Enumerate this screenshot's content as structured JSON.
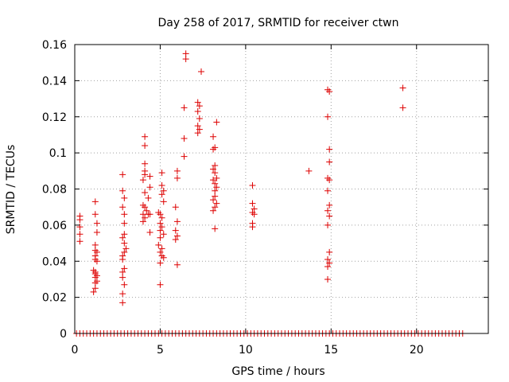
{
  "chart_data": {
    "type": "scatter",
    "title": "Day 258 of 2017, SRMTID for receiver ctwn",
    "xlabel": "GPS time / hours",
    "ylabel": "SRMTID / TECUs",
    "xlim": [
      0,
      24.2
    ],
    "ylim": [
      0,
      0.16
    ],
    "xticks": [
      0,
      5,
      10,
      15,
      20
    ],
    "xtick_labels": [
      "0",
      "5",
      "10",
      "15",
      "20"
    ],
    "yticks": [
      0,
      0.02,
      0.04,
      0.06,
      0.08,
      0.1,
      0.12,
      0.14,
      0.16
    ],
    "ytick_labels": [
      "0",
      "0.02",
      "0.04",
      "0.06",
      "0.08",
      "0.1",
      "0.12",
      "0.14",
      "0.16"
    ],
    "grid": true,
    "marker": "+",
    "color": "#dd0000",
    "series": [
      {
        "name": "SRMTID",
        "points": [
          [
            0.3,
            0.065
          ],
          [
            0.3,
            0.063
          ],
          [
            0.3,
            0.059
          ],
          [
            0.3,
            0.055
          ],
          [
            0.3,
            0.051
          ],
          [
            1.2,
            0.073
          ],
          [
            1.2,
            0.066
          ],
          [
            1.3,
            0.061
          ],
          [
            1.3,
            0.056
          ],
          [
            1.2,
            0.049
          ],
          [
            1.2,
            0.046
          ],
          [
            1.3,
            0.045
          ],
          [
            1.2,
            0.043
          ],
          [
            1.2,
            0.041
          ],
          [
            1.3,
            0.04
          ],
          [
            1.1,
            0.035
          ],
          [
            1.2,
            0.034
          ],
          [
            1.2,
            0.033
          ],
          [
            1.3,
            0.032
          ],
          [
            1.2,
            0.031
          ],
          [
            1.3,
            0.029
          ],
          [
            1.2,
            0.028
          ],
          [
            1.2,
            0.025
          ],
          [
            1.1,
            0.023
          ],
          [
            2.8,
            0.088
          ],
          [
            2.8,
            0.079
          ],
          [
            2.9,
            0.075
          ],
          [
            2.8,
            0.07
          ],
          [
            2.9,
            0.066
          ],
          [
            2.9,
            0.061
          ],
          [
            2.9,
            0.055
          ],
          [
            2.8,
            0.053
          ],
          [
            2.9,
            0.05
          ],
          [
            3.0,
            0.047
          ],
          [
            2.9,
            0.045
          ],
          [
            2.8,
            0.043
          ],
          [
            2.8,
            0.041
          ],
          [
            2.9,
            0.036
          ],
          [
            2.8,
            0.034
          ],
          [
            2.8,
            0.031
          ],
          [
            2.9,
            0.027
          ],
          [
            2.8,
            0.022
          ],
          [
            2.8,
            0.017
          ],
          [
            4.1,
            0.109
          ],
          [
            4.1,
            0.104
          ],
          [
            4.1,
            0.094
          ],
          [
            4.1,
            0.09
          ],
          [
            4.1,
            0.088
          ],
          [
            4.0,
            0.085
          ],
          [
            4.4,
            0.087
          ],
          [
            4.4,
            0.081
          ],
          [
            4.1,
            0.078
          ],
          [
            4.3,
            0.075
          ],
          [
            4.0,
            0.071
          ],
          [
            4.1,
            0.07
          ],
          [
            4.2,
            0.068
          ],
          [
            4.4,
            0.066
          ],
          [
            4.3,
            0.066
          ],
          [
            4.0,
            0.066
          ],
          [
            4.1,
            0.064
          ],
          [
            4.0,
            0.062
          ],
          [
            4.4,
            0.056
          ],
          [
            5.1,
            0.089
          ],
          [
            5.1,
            0.082
          ],
          [
            5.2,
            0.079
          ],
          [
            5.1,
            0.077
          ],
          [
            5.2,
            0.073
          ],
          [
            4.9,
            0.067
          ],
          [
            5.0,
            0.066
          ],
          [
            5.1,
            0.064
          ],
          [
            5.0,
            0.061
          ],
          [
            5.1,
            0.059
          ],
          [
            5.0,
            0.057
          ],
          [
            5.2,
            0.055
          ],
          [
            5.0,
            0.053
          ],
          [
            4.9,
            0.049
          ],
          [
            5.1,
            0.047
          ],
          [
            5.0,
            0.045
          ],
          [
            5.1,
            0.043
          ],
          [
            5.2,
            0.042
          ],
          [
            5.0,
            0.039
          ],
          [
            5.0,
            0.027
          ],
          [
            6.0,
            0.09
          ],
          [
            6.0,
            0.086
          ],
          [
            5.9,
            0.07
          ],
          [
            6.0,
            0.062
          ],
          [
            5.9,
            0.057
          ],
          [
            6.0,
            0.054
          ],
          [
            5.9,
            0.052
          ],
          [
            6.0,
            0.038
          ],
          [
            6.5,
            0.155
          ],
          [
            6.5,
            0.152
          ],
          [
            7.4,
            0.145
          ],
          [
            6.4,
            0.125
          ],
          [
            7.2,
            0.128
          ],
          [
            7.3,
            0.126
          ],
          [
            7.2,
            0.123
          ],
          [
            7.3,
            0.119
          ],
          [
            7.2,
            0.115
          ],
          [
            7.3,
            0.113
          ],
          [
            7.2,
            0.111
          ],
          [
            6.4,
            0.108
          ],
          [
            6.4,
            0.098
          ],
          [
            8.3,
            0.117
          ],
          [
            8.1,
            0.109
          ],
          [
            8.2,
            0.103
          ],
          [
            8.1,
            0.102
          ],
          [
            8.2,
            0.093
          ],
          [
            8.1,
            0.091
          ],
          [
            8.2,
            0.089
          ],
          [
            8.3,
            0.086
          ],
          [
            8.1,
            0.085
          ],
          [
            8.2,
            0.083
          ],
          [
            8.3,
            0.081
          ],
          [
            8.2,
            0.079
          ],
          [
            8.2,
            0.076
          ],
          [
            8.1,
            0.074
          ],
          [
            8.3,
            0.072
          ],
          [
            8.2,
            0.07
          ],
          [
            8.1,
            0.068
          ],
          [
            8.2,
            0.058
          ],
          [
            10.4,
            0.082
          ],
          [
            10.4,
            0.072
          ],
          [
            10.5,
            0.069
          ],
          [
            10.4,
            0.067
          ],
          [
            10.5,
            0.066
          ],
          [
            10.4,
            0.061
          ],
          [
            10.4,
            0.059
          ],
          [
            13.7,
            0.09
          ],
          [
            14.8,
            0.135
          ],
          [
            14.9,
            0.134
          ],
          [
            14.8,
            0.12
          ],
          [
            14.9,
            0.102
          ],
          [
            14.9,
            0.095
          ],
          [
            14.8,
            0.086
          ],
          [
            14.9,
            0.085
          ],
          [
            14.8,
            0.079
          ],
          [
            14.9,
            0.071
          ],
          [
            14.8,
            0.068
          ],
          [
            14.9,
            0.065
          ],
          [
            14.8,
            0.06
          ],
          [
            14.9,
            0.045
          ],
          [
            14.8,
            0.041
          ],
          [
            14.9,
            0.039
          ],
          [
            14.8,
            0.037
          ],
          [
            14.8,
            0.03
          ],
          [
            19.2,
            0.136
          ],
          [
            19.2,
            0.125
          ]
        ]
      },
      {
        "name": "zero-valued samples",
        "x_range": [
          0.1,
          22.7
        ],
        "x_step": 0.2,
        "y": 0
      }
    ]
  }
}
